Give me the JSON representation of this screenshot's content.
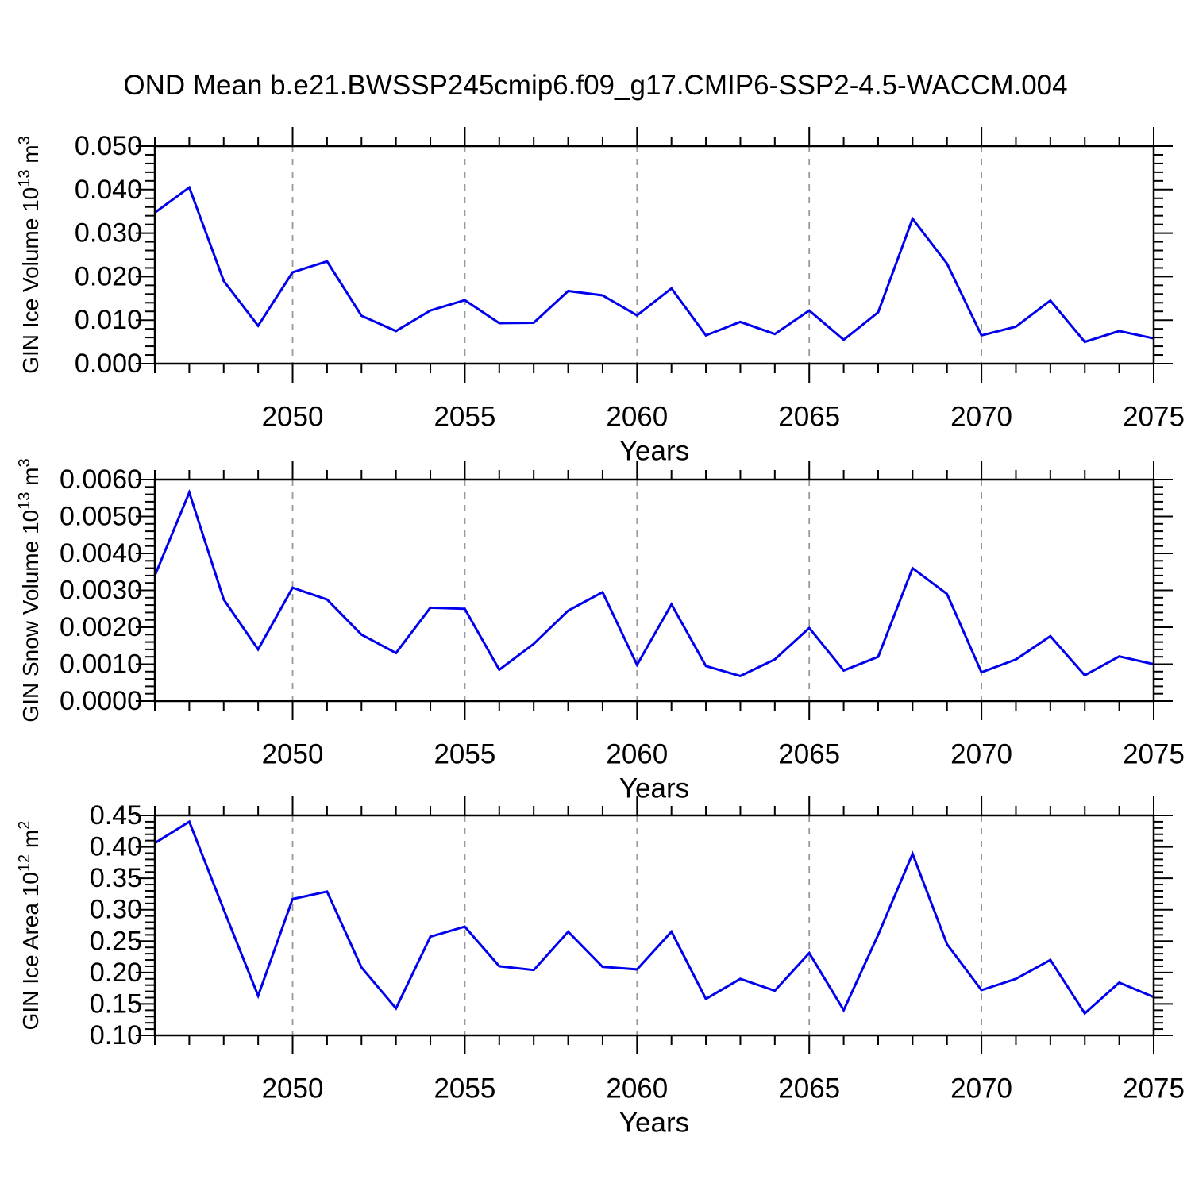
{
  "title": "OND Mean b.e21.BWSSP245cmip6.f09_g17.CMIP6-SSP2-4.5-WACCM.004",
  "colors": {
    "line": "#0000ee",
    "grid": "#999999",
    "axis": "#000000",
    "background": "#ffffff",
    "text": "#000000"
  },
  "x_axis": {
    "label": "Years",
    "range": [
      2046,
      2075
    ],
    "major_ticks": [
      2050,
      2055,
      2060,
      2065,
      2070,
      2075
    ],
    "minor_step": 1,
    "gridline_years": [
      2050,
      2055,
      2060,
      2065,
      2070
    ]
  },
  "years": [
    2046,
    2047,
    2048,
    2049,
    2050,
    2051,
    2052,
    2053,
    2054,
    2055,
    2056,
    2057,
    2058,
    2059,
    2060,
    2061,
    2062,
    2063,
    2064,
    2065,
    2066,
    2067,
    2068,
    2069,
    2070,
    2071,
    2072,
    2073,
    2074,
    2075
  ],
  "chart_data": [
    {
      "type": "line",
      "series_name": "GIN Ice Volume",
      "ylabel_text": "GIN Ice Volume 10^13 m^3",
      "ylabel_parts": [
        {
          "text": "GIN Ice Volume 10",
          "sup": false
        },
        {
          "text": "13",
          "sup": true
        },
        {
          "text": " m",
          "sup": false
        },
        {
          "text": "3",
          "sup": true
        }
      ],
      "xlabel": "Years",
      "ylim": [
        0.0,
        0.05
      ],
      "y_major_step": 0.01,
      "y_minor_step": 0.002,
      "y_tick_labels": [
        "0.000",
        "0.010",
        "0.020",
        "0.030",
        "0.040",
        "0.050"
      ],
      "values": [
        0.0347,
        0.0405,
        0.019,
        0.0087,
        0.021,
        0.0235,
        0.011,
        0.0075,
        0.0122,
        0.0146,
        0.0093,
        0.0094,
        0.0167,
        0.0157,
        0.0111,
        0.0173,
        0.0065,
        0.0096,
        0.0068,
        0.0122,
        0.0055,
        0.0118,
        0.0333,
        0.023,
        0.0065,
        0.0085,
        0.0145,
        0.005,
        0.0075,
        0.0058
      ]
    },
    {
      "type": "line",
      "series_name": "GIN Snow Volume",
      "ylabel_text": "GIN Snow Volume 10^13 m^3",
      "ylabel_parts": [
        {
          "text": "GIN Snow Volume 10",
          "sup": false
        },
        {
          "text": "13",
          "sup": true
        },
        {
          "text": " m",
          "sup": false
        },
        {
          "text": "3",
          "sup": true
        }
      ],
      "xlabel": "Years",
      "ylim": [
        0.0,
        0.006
      ],
      "y_major_step": 0.001,
      "y_minor_step": 0.0002,
      "y_tick_labels": [
        "0.0000",
        "0.0010",
        "0.0020",
        "0.0030",
        "0.0040",
        "0.0050",
        "0.0060"
      ],
      "values": [
        0.0034,
        0.00565,
        0.00275,
        0.0014,
        0.00307,
        0.00275,
        0.0018,
        0.0013,
        0.00253,
        0.0025,
        0.00085,
        0.00155,
        0.00245,
        0.00295,
        0.00098,
        0.00262,
        0.00095,
        0.00068,
        0.00113,
        0.00198,
        0.00083,
        0.0012,
        0.0036,
        0.0029,
        0.00078,
        0.00113,
        0.00176,
        0.0007,
        0.00121,
        0.001
      ]
    },
    {
      "type": "line",
      "series_name": "GIN Ice Area",
      "ylabel_text": "GIN Ice Area 10^12 m^2",
      "ylabel_parts": [
        {
          "text": "GIN Ice Area 10",
          "sup": false
        },
        {
          "text": "12",
          "sup": true
        },
        {
          "text": " m",
          "sup": false
        },
        {
          "text": "2",
          "sup": true
        }
      ],
      "xlabel": "Years",
      "ylim": [
        0.1,
        0.45
      ],
      "y_major_step": 0.05,
      "y_minor_step": 0.01,
      "y_tick_labels": [
        "0.10",
        "0.15",
        "0.20",
        "0.25",
        "0.30",
        "0.35",
        "0.40",
        "0.45"
      ],
      "values": [
        0.406,
        0.44,
        0.3,
        0.163,
        0.317,
        0.329,
        0.208,
        0.143,
        0.257,
        0.273,
        0.21,
        0.204,
        0.265,
        0.209,
        0.205,
        0.265,
        0.158,
        0.19,
        0.171,
        0.231,
        0.14,
        0.26,
        0.389,
        0.245,
        0.172,
        0.19,
        0.22,
        0.135,
        0.184,
        0.161
      ]
    }
  ]
}
